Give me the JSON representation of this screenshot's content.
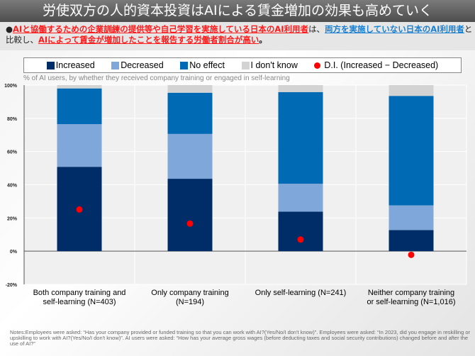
{
  "title": "労使双方の人的資本投資はAIによる賃金増加の効果も高めていく",
  "lead": {
    "bullet": "●",
    "part1": "AIと協働するための企業訓練の提供等や自己学習を実施している日本のAI利用者",
    "part2": "は、",
    "part3": "両方を実施していない日本のAI利用者",
    "part4": "と比較し、",
    "part5": "AIによって賃金が増加したことを報告する労働者割合が高い",
    "part6": "。"
  },
  "subtitle": "% of AI users, by whether they received company training or engaged in self-learning",
  "notes": "Notes:Employees were asked: “Has your company provided or funded training so that you can work with AI?(Yes/No/I don't know)”. Employees were asked: “In 2023, did you engage in reskilling or upskilling to work with AI?(Yes/No/I don't know)”. AI users  were asked: “How has your average gross wages (before deducting taxes and social security contributions) changed before and after the use of AI?”",
  "chart_data": {
    "type": "bar",
    "stacked": true,
    "categories": [
      "Both company training and self-learning (N=403)",
      "Only company training (N=194)",
      "Only self-learning (N=241)",
      "Neither company training or self-learning (N=1,016)"
    ],
    "series": [
      {
        "name": "Increased",
        "color": "#002d67",
        "values": [
          50.8,
          43.6,
          23.8,
          12.7
        ]
      },
      {
        "name": "Decreased",
        "color": "#7fa7d9",
        "values": [
          25.7,
          27.0,
          16.8,
          14.9
        ]
      },
      {
        "name": "No effect",
        "color": "#006ab4",
        "values": [
          21.5,
          24.8,
          55.2,
          65.9
        ]
      },
      {
        "name": "I don't know",
        "color": "#d3d3d3",
        "values": [
          2.0,
          4.6,
          4.2,
          6.5
        ]
      }
    ],
    "di": {
      "name": "D.I. (Increased − Decreased)",
      "color": "#ff0000",
      "values": [
        25.1,
        16.6,
        7.0,
        -2.2
      ]
    },
    "ylim": [
      -20,
      100
    ],
    "yticks": [
      "-20%",
      "0%",
      "20%",
      "40%",
      "60%",
      "80%",
      "100%"
    ],
    "grid": true,
    "legend": "top"
  }
}
